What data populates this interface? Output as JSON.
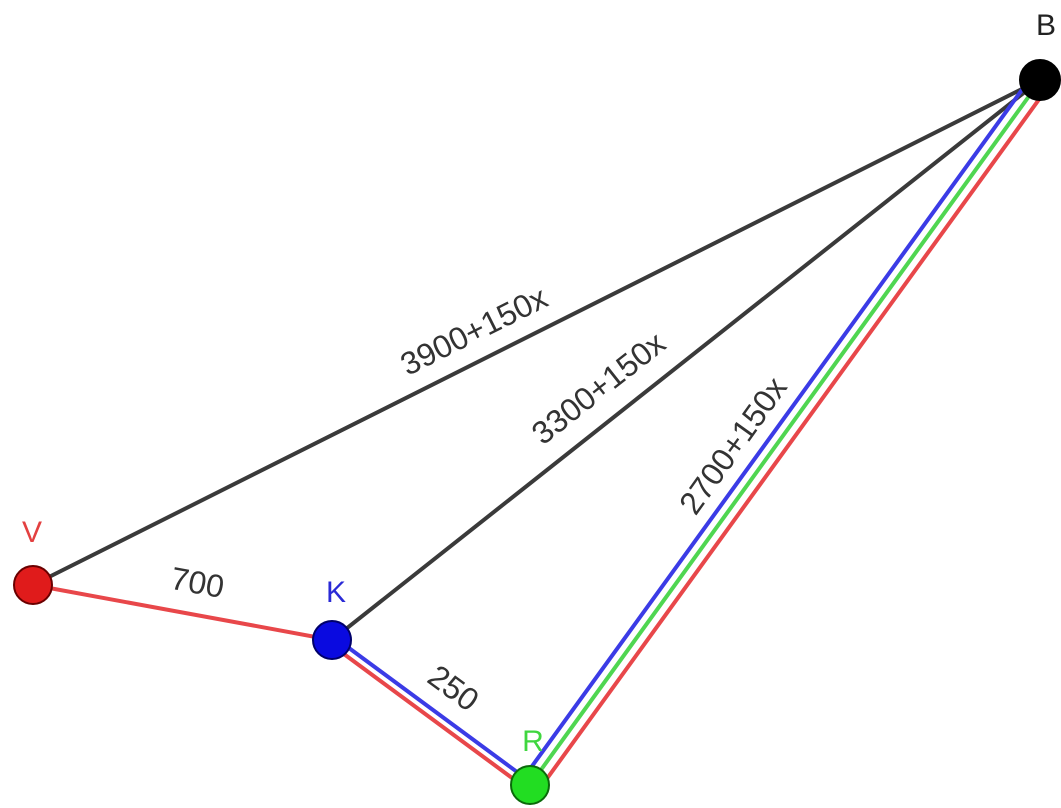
{
  "colors": {
    "black_edge": "#3a3a3a",
    "red_route": "#e8474a",
    "blue_route": "#3b3be6",
    "green_route": "#4fd651"
  },
  "nodes": {
    "V": {
      "label": "V",
      "fill": "#e01b1b",
      "label_color": "#e34040"
    },
    "K": {
      "label": "K",
      "fill": "#0a0ae0",
      "label_color": "#2a2ad6"
    },
    "R": {
      "label": "R",
      "fill": "#22dd22",
      "label_color": "#3fd63f"
    },
    "B": {
      "label": "B",
      "fill": "#000000",
      "label_color": "#222222"
    }
  },
  "edges": {
    "VB": {
      "label": "3900+150x"
    },
    "KB": {
      "label": "3300+150x"
    },
    "RB": {
      "label": "2700+150x"
    },
    "VK": {
      "label": "700"
    },
    "KR": {
      "label": "250"
    }
  }
}
